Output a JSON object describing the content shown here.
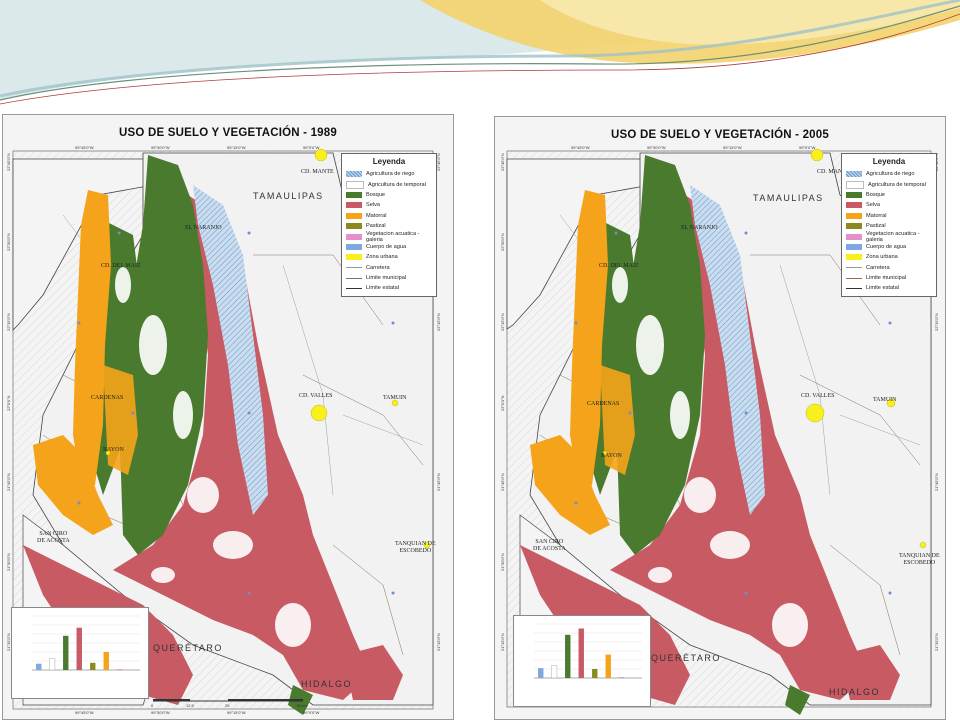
{
  "maps": [
    {
      "title": "USO DE SUELO Y VEGETACIÓN  - 1989",
      "chart_values": [
        7,
        13,
        38,
        47,
        8,
        20,
        1,
        1
      ]
    },
    {
      "title": "USO DE SUELO Y VEGETACIÓN  - 2005",
      "chart_values": [
        11,
        14,
        48,
        55,
        10,
        26,
        1,
        1
      ]
    }
  ],
  "legend": {
    "title": "Leyenda",
    "items": [
      {
        "label": "Agricultura de riego",
        "color": "#b8d4ea",
        "pattern": "hatch"
      },
      {
        "label": "Agricultura de temporal",
        "color": "#ffffff",
        "pattern": "none"
      },
      {
        "label": "Bosque",
        "color": "#4a7a2e",
        "pattern": "solid"
      },
      {
        "label": "Selva",
        "color": "#c85a63",
        "pattern": "solid"
      },
      {
        "label": "Matorral",
        "color": "#f5a31a",
        "pattern": "solid"
      },
      {
        "label": "Pastizal",
        "color": "#8a8a1e",
        "pattern": "solid"
      },
      {
        "label": "Vegetacion acuatica - galeria",
        "color": "#e58fc8",
        "pattern": "solid"
      },
      {
        "label": "Cuerpo de agua",
        "color": "#7fa8e0",
        "pattern": "solid"
      },
      {
        "label": "Zona urbana",
        "color": "#f7f01e",
        "pattern": "solid"
      }
    ],
    "lines": [
      {
        "label": "Carretera",
        "color": "#999999"
      },
      {
        "label": "Limite municipal",
        "color": "#8b6b5a"
      },
      {
        "label": "Limite estatal",
        "color": "#333333"
      }
    ]
  },
  "places": {
    "mante": "CD. MANTE",
    "tamaulipas": "TAMAULIPAS",
    "naranjo": "EL NARANJO",
    "maiz": "CD. DEL MAIZ",
    "valles": "CD. VALLES",
    "tamuin": "TAMUIN",
    "cardenas": "CARDENAS",
    "rayon": "RAYON",
    "sanciro": "SAN CIRO\nDE ACOSTA",
    "tanquian": "TANQUIAN DE\nESCOBEDO",
    "queretaro": "QUERÉTARO",
    "hidalgo": "HIDALGO"
  },
  "coords": {
    "top": [
      "99°45'0\"W",
      "99°30'0\"W",
      "99°15'0\"W",
      "99°0'0\"W"
    ],
    "left": [
      "22°45'0\"N",
      "22°30'0\"N",
      "22°15'0\"N",
      "22°0'0\"N",
      "21°45'0\"N",
      "21°30'0\"N",
      "21°15'0\"N"
    ]
  },
  "scale_labels": [
    "0",
    "12.5",
    "25",
    "50 km"
  ],
  "colors": {
    "bosque": "#4a7a2e",
    "selva": "#c85a63",
    "matorral": "#f5a31a",
    "riego": "#b8d4ea",
    "banner_gold": "#f3d36b",
    "banner_teal": "#9ec3c8"
  }
}
